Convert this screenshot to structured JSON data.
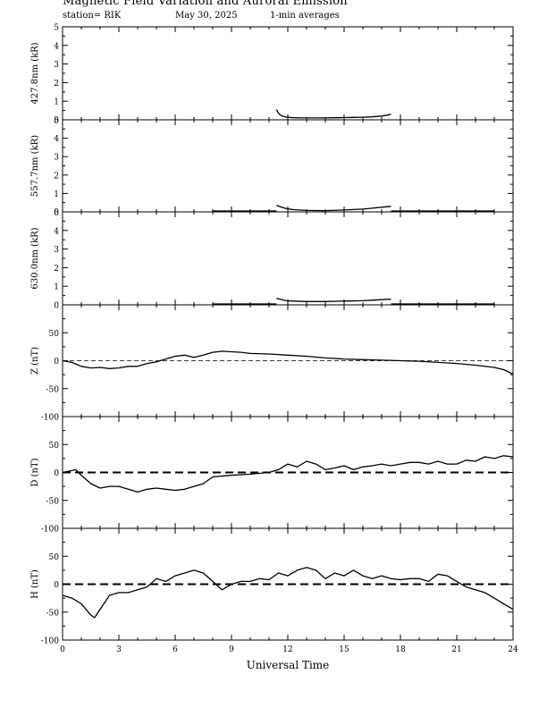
{
  "header": {
    "title": "Magnetic Field Variation and Auroral Emission",
    "station": "station= RIK",
    "date": "May 30, 2025",
    "averaging": "1-min averages"
  },
  "colors": {
    "line": "#000000",
    "background": "#ffffff"
  },
  "chart_data": {
    "type": "line",
    "xlabel": "Universal Time",
    "xlim": [
      0,
      24
    ],
    "xticks": [
      0,
      3,
      6,
      9,
      12,
      15,
      18,
      21,
      24
    ],
    "panels": [
      {
        "id": "p4278",
        "ylabel": "427.8nm (kR)",
        "ylim": [
          0,
          5
        ],
        "yticks": [
          0,
          1,
          2,
          3,
          4,
          5
        ],
        "zero_line": "none",
        "series": [
          {
            "x": [
              11.4,
              11.45,
              11.55,
              11.7,
              11.9,
              12.2,
              12.6,
              13.0,
              13.5,
              14.0,
              14.5,
              15.0,
              15.5,
              16.0,
              16.5,
              17.0,
              17.3,
              17.5
            ],
            "y": [
              0.55,
              0.45,
              0.3,
              0.2,
              0.15,
              0.12,
              0.1,
              0.1,
              0.1,
              0.1,
              0.11,
              0.12,
              0.13,
              0.14,
              0.16,
              0.2,
              0.25,
              0.3
            ]
          }
        ]
      },
      {
        "id": "p5577",
        "ylabel": "557.7nm (kR)",
        "ylim": [
          0,
          5
        ],
        "yticks": [
          0,
          1,
          2,
          3,
          4,
          5
        ],
        "zero_line": "none",
        "series": [
          {
            "x": [
              8.0,
              9.5,
              11.0,
              11.4
            ],
            "y": [
              0.05,
              0.05,
              0.05,
              0.05
            ]
          },
          {
            "x": [
              11.4,
              11.6,
              11.9,
              12.3,
              13.0,
              14.0,
              15.0,
              16.0,
              16.5,
              17.0,
              17.3,
              17.5
            ],
            "y": [
              0.35,
              0.28,
              0.18,
              0.12,
              0.08,
              0.07,
              0.1,
              0.15,
              0.2,
              0.25,
              0.28,
              0.3
            ]
          },
          {
            "x": [
              17.5,
              19.0,
              21.0,
              23.0
            ],
            "y": [
              0.05,
              0.05,
              0.05,
              0.05
            ]
          }
        ]
      },
      {
        "id": "p6300",
        "ylabel": "630.0nm (kR)",
        "ylim": [
          0,
          5
        ],
        "yticks": [
          0,
          1,
          2,
          3,
          4,
          5
        ],
        "zero_line": "none",
        "series": [
          {
            "x": [
              8.0,
              9.5,
              11.0,
              11.4
            ],
            "y": [
              0.05,
              0.05,
              0.05,
              0.05
            ]
          },
          {
            "x": [
              11.4,
              11.6,
              11.9,
              12.3,
              13.0,
              14.0,
              15.0,
              16.0,
              16.5,
              17.0,
              17.3,
              17.5
            ],
            "y": [
              0.35,
              0.3,
              0.22,
              0.2,
              0.18,
              0.18,
              0.2,
              0.22,
              0.25,
              0.28,
              0.3,
              0.3
            ]
          },
          {
            "x": [
              17.5,
              19.0,
              21.0,
              23.0
            ],
            "y": [
              0.05,
              0.05,
              0.05,
              0.05
            ]
          }
        ]
      },
      {
        "id": "pZ",
        "ylabel": "Z (nT)",
        "ylim": [
          -100,
          100
        ],
        "yticks": [
          -100,
          -50,
          0,
          50
        ],
        "zero_line": "thin-dashed",
        "series": [
          {
            "x": [
              0,
              0.5,
              1.0,
              1.5,
              2.0,
              2.5,
              3.0,
              3.5,
              4.0,
              4.5,
              5.0,
              5.5,
              6.0,
              6.5,
              7.0,
              7.5,
              8.0,
              8.5,
              9.0,
              9.5,
              10.0,
              11.0,
              12.0,
              13.0,
              14.0,
              15.0,
              16.0,
              17.0,
              18.0,
              19.0,
              20.0,
              21.0,
              22.0,
              23.0,
              23.5,
              24.0
            ],
            "y": [
              0,
              -3,
              -10,
              -13,
              -12,
              -14,
              -13,
              -10,
              -10,
              -5,
              -2,
              3,
              8,
              10,
              6,
              10,
              15,
              17,
              16,
              15,
              13,
              12,
              10,
              8,
              5,
              3,
              2,
              1,
              0,
              -1,
              -3,
              -5,
              -8,
              -12,
              -16,
              -24
            ]
          }
        ]
      },
      {
        "id": "pD",
        "ylabel": "D (nT)",
        "ylim": [
          -100,
          100
        ],
        "yticks": [
          -100,
          -50,
          0,
          50
        ],
        "zero_line": "thick-dashed",
        "series": [
          {
            "x": [
              0,
              0.3,
              0.7,
              1.0,
              1.5,
              2.0,
              2.5,
              3.0,
              3.5,
              4.0,
              4.5,
              5.0,
              5.5,
              6.0,
              6.5,
              7.0,
              7.5,
              8.0,
              9.0,
              10.0,
              11.0,
              11.5,
              12.0,
              12.5,
              13.0,
              13.5,
              14.0,
              14.5,
              15.0,
              15.5,
              16.0,
              16.5,
              17.0,
              17.5,
              18.0,
              18.5,
              19.0,
              19.5,
              20.0,
              20.5,
              21.0,
              21.5,
              22.0,
              22.5,
              23.0,
              23.5,
              24.0
            ],
            "y": [
              0,
              2,
              5,
              -5,
              -20,
              -28,
              -25,
              -25,
              -30,
              -35,
              -30,
              -28,
              -30,
              -32,
              -30,
              -25,
              -20,
              -8,
              -5,
              -3,
              0,
              5,
              15,
              10,
              20,
              15,
              5,
              8,
              12,
              5,
              10,
              12,
              15,
              12,
              15,
              18,
              18,
              15,
              20,
              15,
              15,
              22,
              20,
              28,
              25,
              30,
              28
            ]
          }
        ]
      },
      {
        "id": "pH",
        "ylabel": "H (nT)",
        "ylim": [
          -100,
          100
        ],
        "yticks": [
          -100,
          -50,
          0,
          50
        ],
        "zero_line": "thick-dashed",
        "series": [
          {
            "x": [
              0,
              0.5,
              1.0,
              1.5,
              1.7,
              2.0,
              2.5,
              3.0,
              3.5,
              4.0,
              4.5,
              5.0,
              5.5,
              6.0,
              6.5,
              7.0,
              7.5,
              8.0,
              8.5,
              9.0,
              9.5,
              10.0,
              10.5,
              11.0,
              11.5,
              12.0,
              12.5,
              13.0,
              13.5,
              14.0,
              14.5,
              15.0,
              15.5,
              16.0,
              16.5,
              17.0,
              17.5,
              18.0,
              18.5,
              19.0,
              19.5,
              20.0,
              20.5,
              21.0,
              21.5,
              22.0,
              22.5,
              23.0,
              23.5,
              24.0
            ],
            "y": [
              -20,
              -25,
              -35,
              -55,
              -60,
              -45,
              -20,
              -15,
              -15,
              -10,
              -5,
              10,
              5,
              15,
              20,
              25,
              20,
              5,
              -10,
              0,
              5,
              5,
              10,
              8,
              20,
              15,
              25,
              30,
              25,
              10,
              20,
              15,
              25,
              15,
              10,
              15,
              10,
              8,
              10,
              10,
              5,
              18,
              15,
              5,
              -5,
              -10,
              -15,
              -25,
              -35,
              -45
            ]
          }
        ]
      }
    ]
  }
}
